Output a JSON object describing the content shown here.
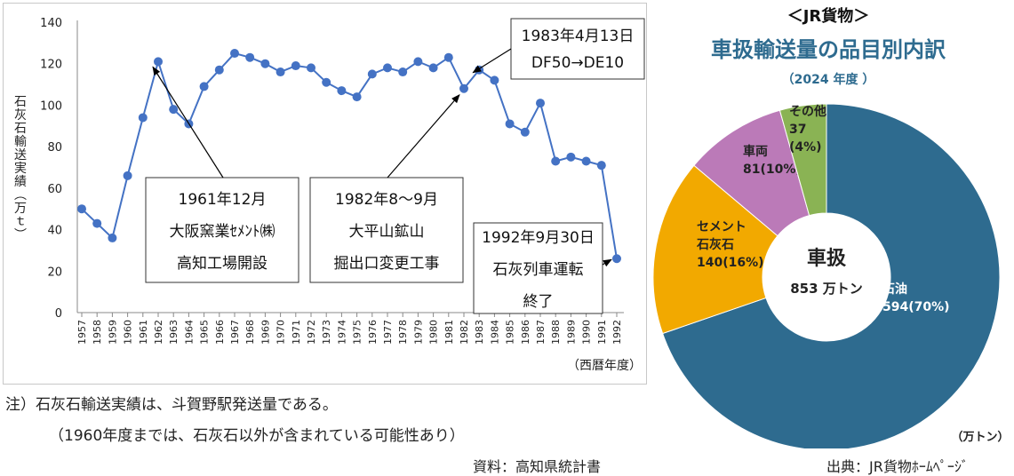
{
  "chart_data": [
    {
      "type": "line",
      "ylabel": "石灰石輸送実績（万ｔ）",
      "xlabel": "（西暦年度）",
      "ylim": [
        0,
        140
      ],
      "yticks": [
        0,
        20,
        40,
        60,
        80,
        100,
        120,
        140
      ],
      "x": [
        1957,
        1958,
        1959,
        1960,
        1961,
        1962,
        1963,
        1964,
        1965,
        1966,
        1967,
        1968,
        1969,
        1970,
        1971,
        1972,
        1973,
        1974,
        1975,
        1976,
        1977,
        1978,
        1979,
        1980,
        1981,
        1982,
        1983,
        1984,
        1985,
        1986,
        1987,
        1988,
        1989,
        1990,
        1991,
        1992
      ],
      "series": [
        {
          "name": "石灰石輸送実績",
          "values": [
            50,
            43,
            36,
            66,
            94,
            121,
            98,
            91,
            109,
            117,
            125,
            123,
            120,
            116,
            119,
            118,
            111,
            107,
            104,
            115,
            118,
            116,
            121,
            118,
            123,
            108,
            117,
            112,
            91,
            87,
            101,
            73,
            75,
            73,
            71,
            26
          ]
        }
      ],
      "color": "#4472c4",
      "annotations": [
        {
          "lines": [
            "1961年12月",
            "大阪窯業ｾﾒﾝﾄ㈱",
            "高知工場開設"
          ],
          "points_to_year": 1962
        },
        {
          "lines": [
            "1982年8～9月",
            "大平山鉱山",
            "掘出口変更工事"
          ],
          "points_to_year": 1982
        },
        {
          "lines": [
            "1983年4月13日",
            "DF50→DE10"
          ],
          "points_to_year": 1983
        },
        {
          "lines": [
            "1992年9月30日",
            "石灰列車運転",
            "終了"
          ],
          "points_to_year": 1992
        }
      ]
    },
    {
      "type": "pie",
      "header": "＜JR貨物＞",
      "title": "車扱輸送量の品目別内訳",
      "subtitle": "（2024 年度 ）",
      "center_label": "車扱",
      "center_value": "853 万トン",
      "unit": "（万トン）",
      "slices": [
        {
          "name": "石油",
          "value": 594,
          "label": "594(70%)",
          "color": "#2e6b8f"
        },
        {
          "name": "セメント\n石灰石",
          "value": 140,
          "label": "140(16%)",
          "color": "#f2a900"
        },
        {
          "name": "車両",
          "value": 81,
          "label": "81(10%)",
          "color": "#bb7ab8"
        },
        {
          "name": "その他",
          "value": 37,
          "label": "37\n(4%)",
          "color": "#8ab354"
        }
      ]
    }
  ],
  "notes": {
    "note1": "注）石灰石輸送実績は、斗賀野駅発送量である。",
    "note2": "（1960年度までは、石灰石以外が含まれている可能性あり）",
    "source_left": "資料：高知県統計書",
    "source_right": "出典：JR貨物ﾎｰﾑﾍﾟｰｼﾞ"
  }
}
